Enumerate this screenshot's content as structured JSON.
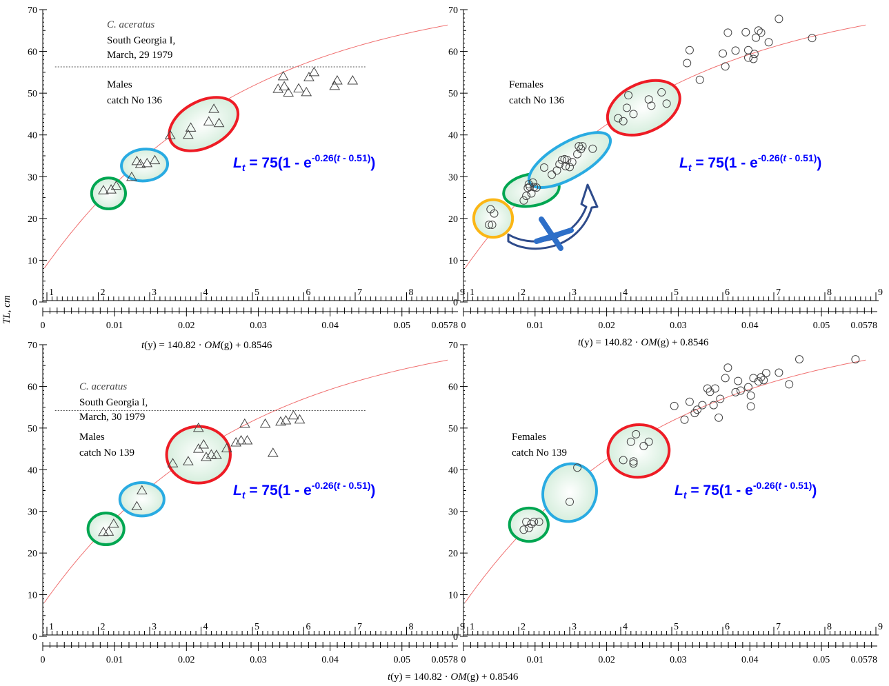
{
  "figure": {
    "ylabel": "TL, cm",
    "formula_prefix": "t",
    "formula_mid": "(y) = 140.82 · ",
    "formula_om": "OM",
    "formula_suffix": "(g) + 0.8546"
  },
  "chart_data": [
    {
      "type": "scatter",
      "species": "C. aceratus",
      "location": "South Georgia I,",
      "date": "March, 29 1979",
      "sex": "Males",
      "catch": "catch No 136",
      "marker": "triangle",
      "ylim": [
        0,
        70
      ],
      "age_ticks": [
        1,
        2,
        3,
        4,
        5,
        6,
        7,
        8,
        9
      ],
      "om_ticks": [
        0,
        0.01,
        0.02,
        0.03,
        0.04,
        0.05,
        0.0578
      ],
      "om_tick_labels": [
        "0",
        "0.01",
        "0.02",
        "0.03",
        "0.04",
        "0.05",
        "0.0578"
      ],
      "yticks": [
        0,
        10,
        20,
        30,
        40,
        50,
        60,
        70
      ],
      "reference_line": 56.3,
      "equation": {
        "L": "L",
        "sub": "t",
        "main": " = 75(1 - e",
        "sup": "-0.26(",
        "sup_t": "t",
        "sup_end": " - 0.51)",
        "close": ")"
      },
      "growth_curve": {
        "Linf": 75,
        "k": 0.26,
        "t0": 0.51
      },
      "points": [
        [
          2.1,
          26.7
        ],
        [
          2.25,
          26.9
        ],
        [
          2.35,
          27.8
        ],
        [
          2.65,
          29.9
        ],
        [
          2.75,
          33.7
        ],
        [
          2.82,
          33.0
        ],
        [
          2.95,
          33.2
        ],
        [
          3.1,
          33.9
        ],
        [
          3.4,
          39.9
        ],
        [
          3.75,
          40.0
        ],
        [
          3.8,
          41.7
        ],
        [
          4.15,
          43.2
        ],
        [
          4.25,
          46.2
        ],
        [
          4.35,
          42.8
        ],
        [
          5.5,
          51.0
        ],
        [
          5.6,
          54.0
        ],
        [
          5.62,
          51.6
        ],
        [
          5.7,
          50.1
        ],
        [
          5.9,
          51.1
        ],
        [
          6.05,
          50.2
        ],
        [
          6.1,
          53.8
        ],
        [
          6.2,
          55.0
        ],
        [
          6.6,
          51.7
        ],
        [
          6.65,
          53.0
        ],
        [
          6.95,
          53.0
        ]
      ],
      "ellipses": [
        {
          "color": "#00a651",
          "age": 2.2,
          "length": 26.0,
          "rx_age": 0.33,
          "ry_length": 3.7,
          "rot": 0
        },
        {
          "color": "#29abe2",
          "age": 2.9,
          "length": 32.8,
          "rx_age": 0.45,
          "ry_length": 3.8,
          "rot": -5
        },
        {
          "color": "#ee1c25",
          "age": 4.05,
          "length": 42.6,
          "rx_age": 0.72,
          "ry_length": 5.5,
          "rot": -28
        }
      ]
    },
    {
      "type": "scatter",
      "sex": "Females",
      "catch": "catch No 136",
      "marker": "circle",
      "ylim": [
        0,
        70
      ],
      "age_ticks": [
        1,
        2,
        3,
        4,
        5,
        6,
        7,
        8,
        9
      ],
      "om_ticks": [
        0,
        0.01,
        0.02,
        0.03,
        0.04,
        0.05,
        0.0578
      ],
      "om_tick_labels": [
        "0",
        "0.01",
        "0.02",
        "0.03",
        "0.04",
        "0.05",
        "0.0578"
      ],
      "yticks": [
        0,
        10,
        20,
        30,
        40,
        50,
        60,
        70
      ],
      "equation": {
        "L": "L",
        "sub": "t",
        "main": " = 75(1 - e",
        "sup": "-0.26(",
        "sup_t": "t",
        "sup_end": " - 0.51)",
        "close": ")"
      },
      "growth_curve": {
        "Linf": 75,
        "k": 0.26,
        "t0": 0.51
      },
      "points": [
        [
          1.42,
          18.5
        ],
        [
          1.45,
          22.2
        ],
        [
          1.52,
          21.2
        ],
        [
          1.48,
          18.5
        ],
        [
          2.1,
          24.3
        ],
        [
          2.15,
          25.4
        ],
        [
          2.18,
          27.3
        ],
        [
          2.2,
          28.2
        ],
        [
          2.22,
          27.6
        ],
        [
          2.25,
          26.0
        ],
        [
          2.28,
          28.6
        ],
        [
          2.3,
          27.5
        ],
        [
          2.35,
          27.4
        ],
        [
          2.5,
          32.2
        ],
        [
          2.65,
          30.5
        ],
        [
          2.75,
          31.5
        ],
        [
          2.8,
          33.0
        ],
        [
          2.85,
          34.0
        ],
        [
          2.9,
          34.2
        ],
        [
          2.92,
          32.5
        ],
        [
          2.95,
          34.0
        ],
        [
          3.0,
          32.3
        ],
        [
          3.05,
          33.5
        ],
        [
          3.15,
          35.4
        ],
        [
          3.18,
          37.3
        ],
        [
          3.22,
          36.6
        ],
        [
          3.25,
          37.3
        ],
        [
          3.45,
          36.7
        ],
        [
          3.95,
          44.0
        ],
        [
          4.05,
          43.3
        ],
        [
          4.12,
          46.5
        ],
        [
          4.15,
          49.5
        ],
        [
          4.25,
          45.0
        ],
        [
          4.55,
          48.5
        ],
        [
          4.6,
          47.0
        ],
        [
          4.8,
          50.2
        ],
        [
          4.9,
          47.5
        ],
        [
          5.3,
          57.2
        ],
        [
          5.35,
          60.3
        ],
        [
          5.55,
          53.2
        ],
        [
          6.0,
          59.5
        ],
        [
          6.05,
          56.4
        ],
        [
          6.1,
          64.5
        ],
        [
          6.25,
          60.2
        ],
        [
          6.45,
          64.6
        ],
        [
          6.5,
          60.3
        ],
        [
          6.5,
          58.5
        ],
        [
          6.6,
          58.2
        ],
        [
          6.62,
          59.4
        ],
        [
          6.65,
          63.3
        ],
        [
          6.7,
          65.0
        ],
        [
          6.75,
          64.5
        ],
        [
          6.9,
          62.2
        ],
        [
          7.1,
          67.8
        ],
        [
          7.75,
          63.2
        ]
      ],
      "ellipses": [
        {
          "color": "#fbb615",
          "age": 1.5,
          "length": 20.0,
          "rx_age": 0.38,
          "ry_length": 4.5,
          "rot": 0
        },
        {
          "color": "#00a651",
          "age": 2.25,
          "length": 26.8,
          "rx_age": 0.55,
          "ry_length": 3.8,
          "rot": -10
        },
        {
          "color": "#29abe2",
          "age": 3.0,
          "length": 34.0,
          "rx_age": 0.9,
          "ry_length": 4.2,
          "rot": -30
        },
        {
          "color": "#ee1c25",
          "age": 4.45,
          "length": 46.5,
          "rx_age": 0.75,
          "ry_length": 5.8,
          "rot": -25
        }
      ]
    },
    {
      "type": "scatter",
      "species": "C. aceratus",
      "location": "South Georgia I,",
      "date": "March, 30 1979",
      "sex": "Males",
      "catch": "catch No 139",
      "marker": "triangle",
      "ylim": [
        0,
        70
      ],
      "age_ticks": [
        1,
        2,
        3,
        4,
        5,
        6,
        7,
        8,
        9
      ],
      "om_ticks": [
        0,
        0.01,
        0.02,
        0.03,
        0.04,
        0.05,
        0.0578
      ],
      "om_tick_labels": [
        "0",
        "0.01",
        "0.02",
        "0.03",
        "0.04",
        "0.05",
        "0.0578"
      ],
      "yticks": [
        0,
        10,
        20,
        30,
        40,
        50,
        60,
        70
      ],
      "reference_line": 54.2,
      "equation": {
        "L": "L",
        "sub": "t",
        "main": " = 75(1 - e",
        "sup": "-0.26(",
        "sup_t": "t",
        "sup_end": " - 0.51)",
        "close": ")"
      },
      "growth_curve": {
        "Linf": 75,
        "k": 0.26,
        "t0": 0.51
      },
      "points": [
        [
          2.1,
          25.0
        ],
        [
          2.2,
          25.1
        ],
        [
          2.3,
          27.0
        ],
        [
          2.75,
          31.2
        ],
        [
          2.85,
          35.0
        ],
        [
          3.45,
          41.5
        ],
        [
          3.75,
          42.0
        ],
        [
          3.95,
          50.0
        ],
        [
          3.95,
          45.0
        ],
        [
          4.05,
          46.0
        ],
        [
          4.1,
          43.0
        ],
        [
          4.2,
          43.6
        ],
        [
          4.3,
          43.5
        ],
        [
          4.5,
          45.1
        ],
        [
          4.68,
          46.5
        ],
        [
          4.78,
          47.0
        ],
        [
          4.9,
          47.0
        ],
        [
          4.85,
          51.0
        ],
        [
          5.25,
          51.0
        ],
        [
          5.4,
          44.0
        ],
        [
          5.55,
          51.5
        ],
        [
          5.65,
          51.8
        ],
        [
          5.8,
          53.0
        ],
        [
          5.92,
          52.0
        ]
      ],
      "ellipses": [
        {
          "color": "#00a651",
          "age": 2.15,
          "length": 25.8,
          "rx_age": 0.35,
          "ry_length": 3.8,
          "rot": 0
        },
        {
          "color": "#29abe2",
          "age": 2.85,
          "length": 32.9,
          "rx_age": 0.43,
          "ry_length": 4.0,
          "rot": 0
        },
        {
          "color": "#ee1c25",
          "age": 3.95,
          "length": 43.6,
          "rx_age": 0.62,
          "ry_length": 6.8,
          "rot": 0
        }
      ]
    },
    {
      "type": "scatter",
      "sex": "Females",
      "catch": "catch No 139",
      "marker": "circle",
      "ylim": [
        0,
        70
      ],
      "age_ticks": [
        1,
        2,
        3,
        4,
        5,
        6,
        7,
        8,
        9
      ],
      "om_ticks": [
        0,
        0.01,
        0.02,
        0.03,
        0.04,
        0.05,
        0.0578
      ],
      "om_tick_labels": [
        "0",
        "0.01",
        "0.02",
        "0.03",
        "0.04",
        "0.05",
        "0.0578"
      ],
      "yticks": [
        0,
        10,
        20,
        30,
        40,
        50,
        60,
        70
      ],
      "equation": {
        "L": "L",
        "sub": "t",
        "main": " = 75(1 - e",
        "sup": "-0.26(",
        "sup_t": "t",
        "sup_end": " - 0.51)",
        "close": ")"
      },
      "growth_curve": {
        "Linf": 75,
        "k": 0.26,
        "t0": 0.51
      },
      "points": [
        [
          2.1,
          25.6
        ],
        [
          2.15,
          27.5
        ],
        [
          2.2,
          26.0
        ],
        [
          2.25,
          27.0
        ],
        [
          2.3,
          27.5
        ],
        [
          2.4,
          27.5
        ],
        [
          3.0,
          32.3
        ],
        [
          3.15,
          40.5
        ],
        [
          4.05,
          42.3
        ],
        [
          4.2,
          46.7
        ],
        [
          4.25,
          42.0
        ],
        [
          4.25,
          41.5
        ],
        [
          4.3,
          48.5
        ],
        [
          4.45,
          45.7
        ],
        [
          4.55,
          46.7
        ],
        [
          5.05,
          55.3
        ],
        [
          5.25,
          52.0
        ],
        [
          5.35,
          56.3
        ],
        [
          5.5,
          54.4
        ],
        [
          5.7,
          59.5
        ],
        [
          5.75,
          58.7
        ],
        [
          5.85,
          59.5
        ],
        [
          5.45,
          53.6
        ],
        [
          5.6,
          55.5
        ],
        [
          5.82,
          55.5
        ],
        [
          5.92,
          52.5
        ],
        [
          5.95,
          57.0
        ],
        [
          6.05,
          62.0
        ],
        [
          6.25,
          58.6
        ],
        [
          6.3,
          61.3
        ],
        [
          6.35,
          59.0
        ],
        [
          6.1,
          64.5
        ],
        [
          6.5,
          59.8
        ],
        [
          6.55,
          57.8
        ],
        [
          6.6,
          62.0
        ],
        [
          6.7,
          61.2
        ],
        [
          6.75,
          62.2
        ],
        [
          6.8,
          61.5
        ],
        [
          6.85,
          63.2
        ],
        [
          6.55,
          55.2
        ],
        [
          7.1,
          63.3
        ],
        [
          7.3,
          60.5
        ],
        [
          7.5,
          66.5
        ],
        [
          8.6,
          66.5
        ]
      ],
      "ellipses": [
        {
          "color": "#00a651",
          "age": 2.2,
          "length": 26.8,
          "rx_age": 0.38,
          "ry_length": 4.0,
          "rot": 0
        },
        {
          "color": "#29abe2",
          "age": 3.0,
          "length": 34.5,
          "rx_age": 0.52,
          "ry_length": 7.0,
          "rot": 20
        },
        {
          "color": "#ee1c25",
          "age": 4.35,
          "length": 44.5,
          "rx_age": 0.6,
          "ry_length": 6.3,
          "rot": -5
        }
      ]
    }
  ]
}
